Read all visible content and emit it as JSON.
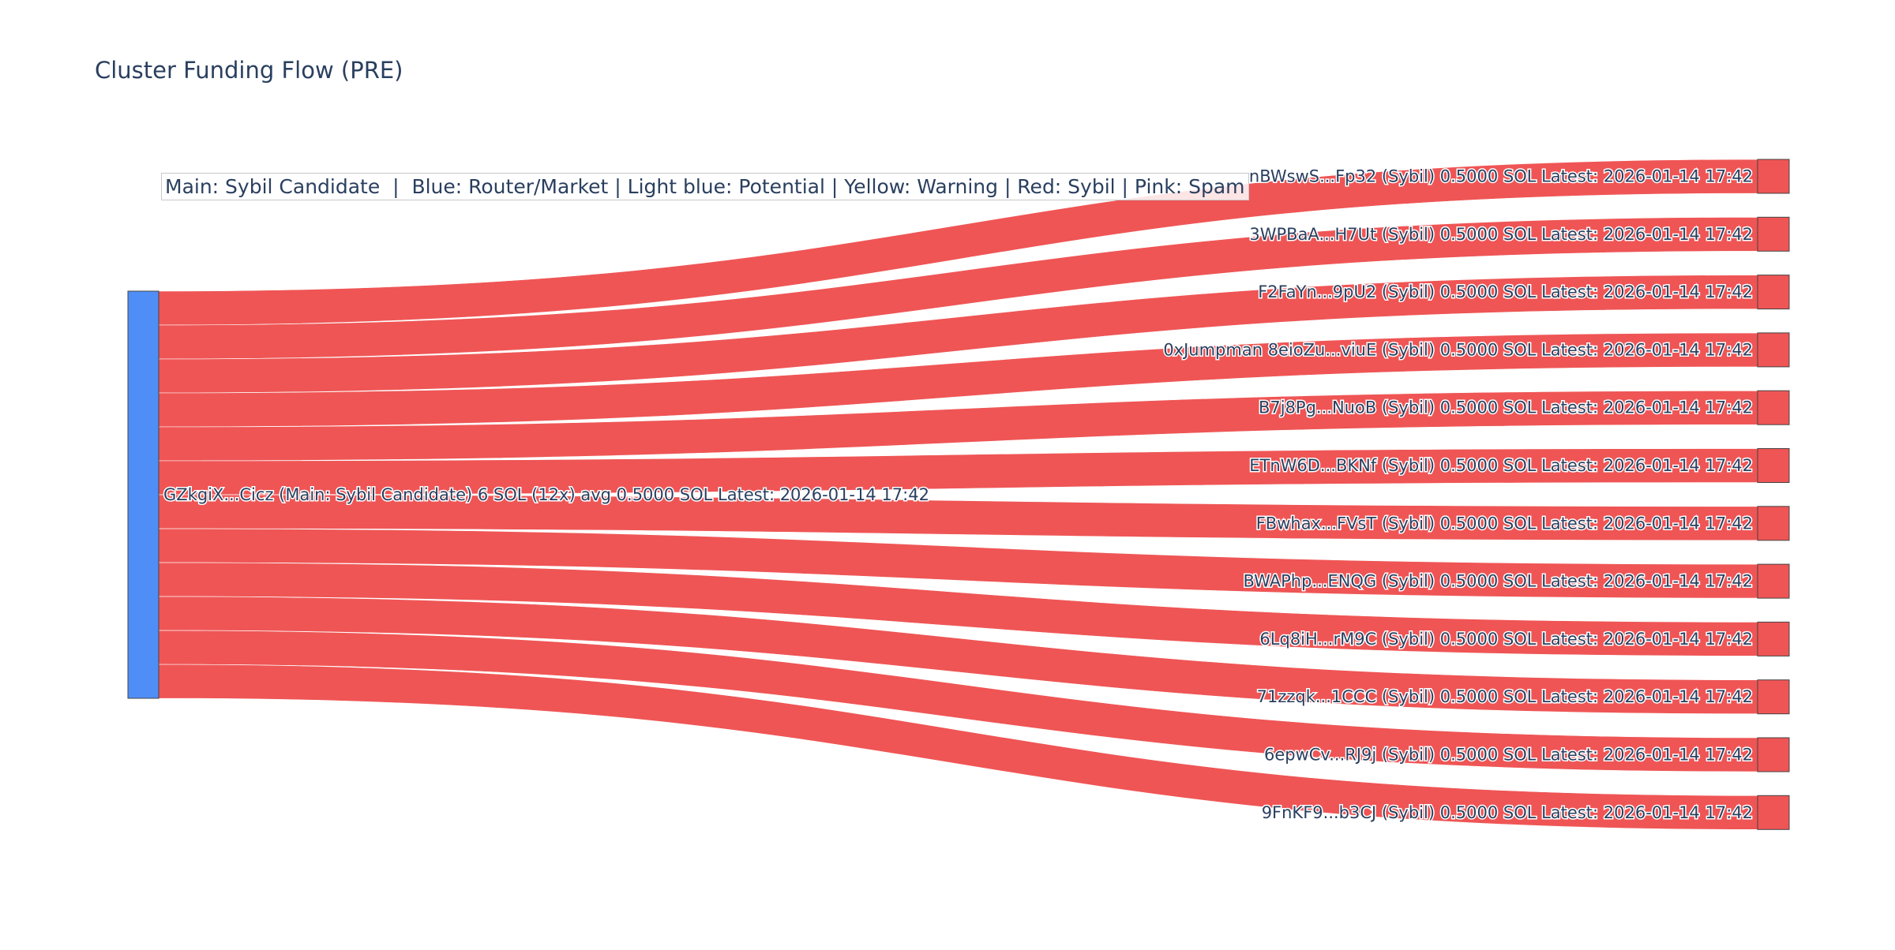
{
  "title": "Cluster Funding Flow (PRE)",
  "legend_text": "Main: Sybil Candidate  |  Blue: Router/Market | Light blue: Potential | Yellow: Warning | Red: Sybil | Pink: Spam",
  "colors": {
    "source_node": "#4f8ef7",
    "target_node": "#ef5555",
    "link": "#ef5555",
    "text": "#2a3f5f",
    "node_border": "#444444"
  },
  "chart_data": {
    "type": "sankey",
    "title": "Cluster Funding Flow (PRE)",
    "source": {
      "label": "GZkgiX...Cicz (Main: Sybil Candidate) 6 SOL (12x) avg 0.5000 SOL Latest: 2026-01-14 17:42",
      "total": 6
    },
    "targets": [
      {
        "label": "nBWswS...Fp32 (Sybil) 0.5000 SOL Latest: 2026-01-14 17:42",
        "value": 0.5
      },
      {
        "label": "3WPBaA...H7Ut (Sybil) 0.5000 SOL Latest: 2026-01-14 17:42",
        "value": 0.5
      },
      {
        "label": "F2FaYn...9pU2 (Sybil) 0.5000 SOL Latest: 2026-01-14 17:42",
        "value": 0.5
      },
      {
        "label": "0xJumpman 8eioZu...viuE (Sybil) 0.5000 SOL Latest: 2026-01-14 17:42",
        "value": 0.5
      },
      {
        "label": "B7j8Pg...NuoB (Sybil) 0.5000 SOL Latest: 2026-01-14 17:42",
        "value": 0.5
      },
      {
        "label": "ETnW6D...BKNf (Sybil) 0.5000 SOL Latest: 2026-01-14 17:42",
        "value": 0.5
      },
      {
        "label": "FBwhax...FVsT (Sybil) 0.5000 SOL Latest: 2026-01-14 17:42",
        "value": 0.5
      },
      {
        "label": "BWAPhp...ENQG (Sybil) 0.5000 SOL Latest: 2026-01-14 17:42",
        "value": 0.5
      },
      {
        "label": "6Lq8iH...rM9C (Sybil) 0.5000 SOL Latest: 2026-01-14 17:42",
        "value": 0.5
      },
      {
        "label": "71zzqk...1CCC (Sybil) 0.5000 SOL Latest: 2026-01-14 17:42",
        "value": 0.5
      },
      {
        "label": "6epwCv...RJ9j (Sybil) 0.5000 SOL Latest: 2026-01-14 17:42",
        "value": 0.5
      },
      {
        "label": "9FnKF9...b3CJ (Sybil) 0.5000 SOL Latest: 2026-01-14 17:42",
        "value": 0.5
      }
    ]
  }
}
